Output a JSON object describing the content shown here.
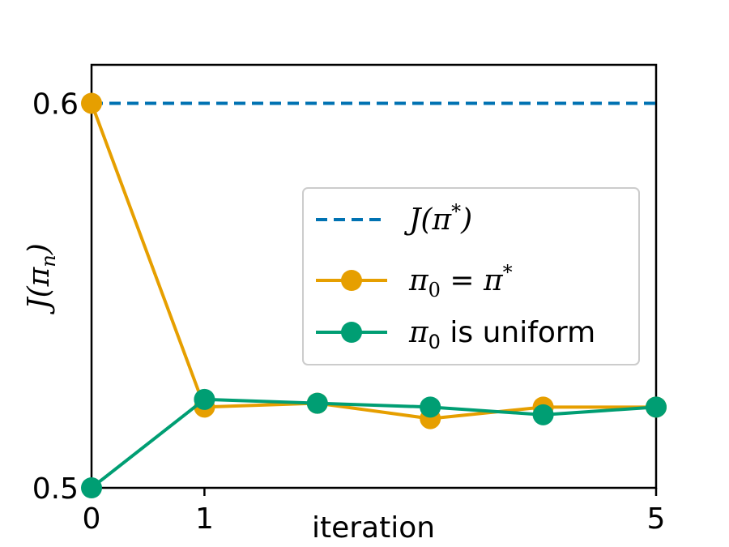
{
  "chart_data": {
    "type": "line",
    "xlabel": "iteration",
    "ylabel_main": "J(π",
    "ylabel_sub": "n",
    "ylabel_close": ")",
    "xlim": [
      0,
      5
    ],
    "ylim": [
      0.5,
      0.61
    ],
    "x_ticks": [
      {
        "value": 0,
        "label": "0"
      },
      {
        "value": 1,
        "label": "1"
      },
      {
        "value": 5,
        "label": "5"
      }
    ],
    "y_ticks": [
      {
        "value": 0.5,
        "label": "0.5"
      },
      {
        "value": 0.6,
        "label": "0.6"
      }
    ],
    "reference": {
      "value": 0.6,
      "color": "#0072b2"
    },
    "series": [
      {
        "name_main": "π",
        "name_sub": "0",
        "name_rest": " = π",
        "name_sup": "*",
        "color": "#e69f00",
        "x": [
          0,
          1,
          2,
          3,
          4,
          5
        ],
        "y": [
          0.6,
          0.521,
          0.522,
          0.518,
          0.521,
          0.521
        ]
      },
      {
        "name_main": "π",
        "name_sub": "0",
        "name_rest": " is uniform",
        "color": "#009e73",
        "x": [
          0,
          1,
          2,
          3,
          4,
          5
        ],
        "y": [
          0.5,
          0.523,
          0.522,
          0.521,
          0.519,
          0.521
        ]
      }
    ],
    "legend": {
      "placement": "center-right",
      "ref_main": "J(π",
      "ref_sup": "*",
      "ref_close": ")"
    },
    "grid": false
  }
}
